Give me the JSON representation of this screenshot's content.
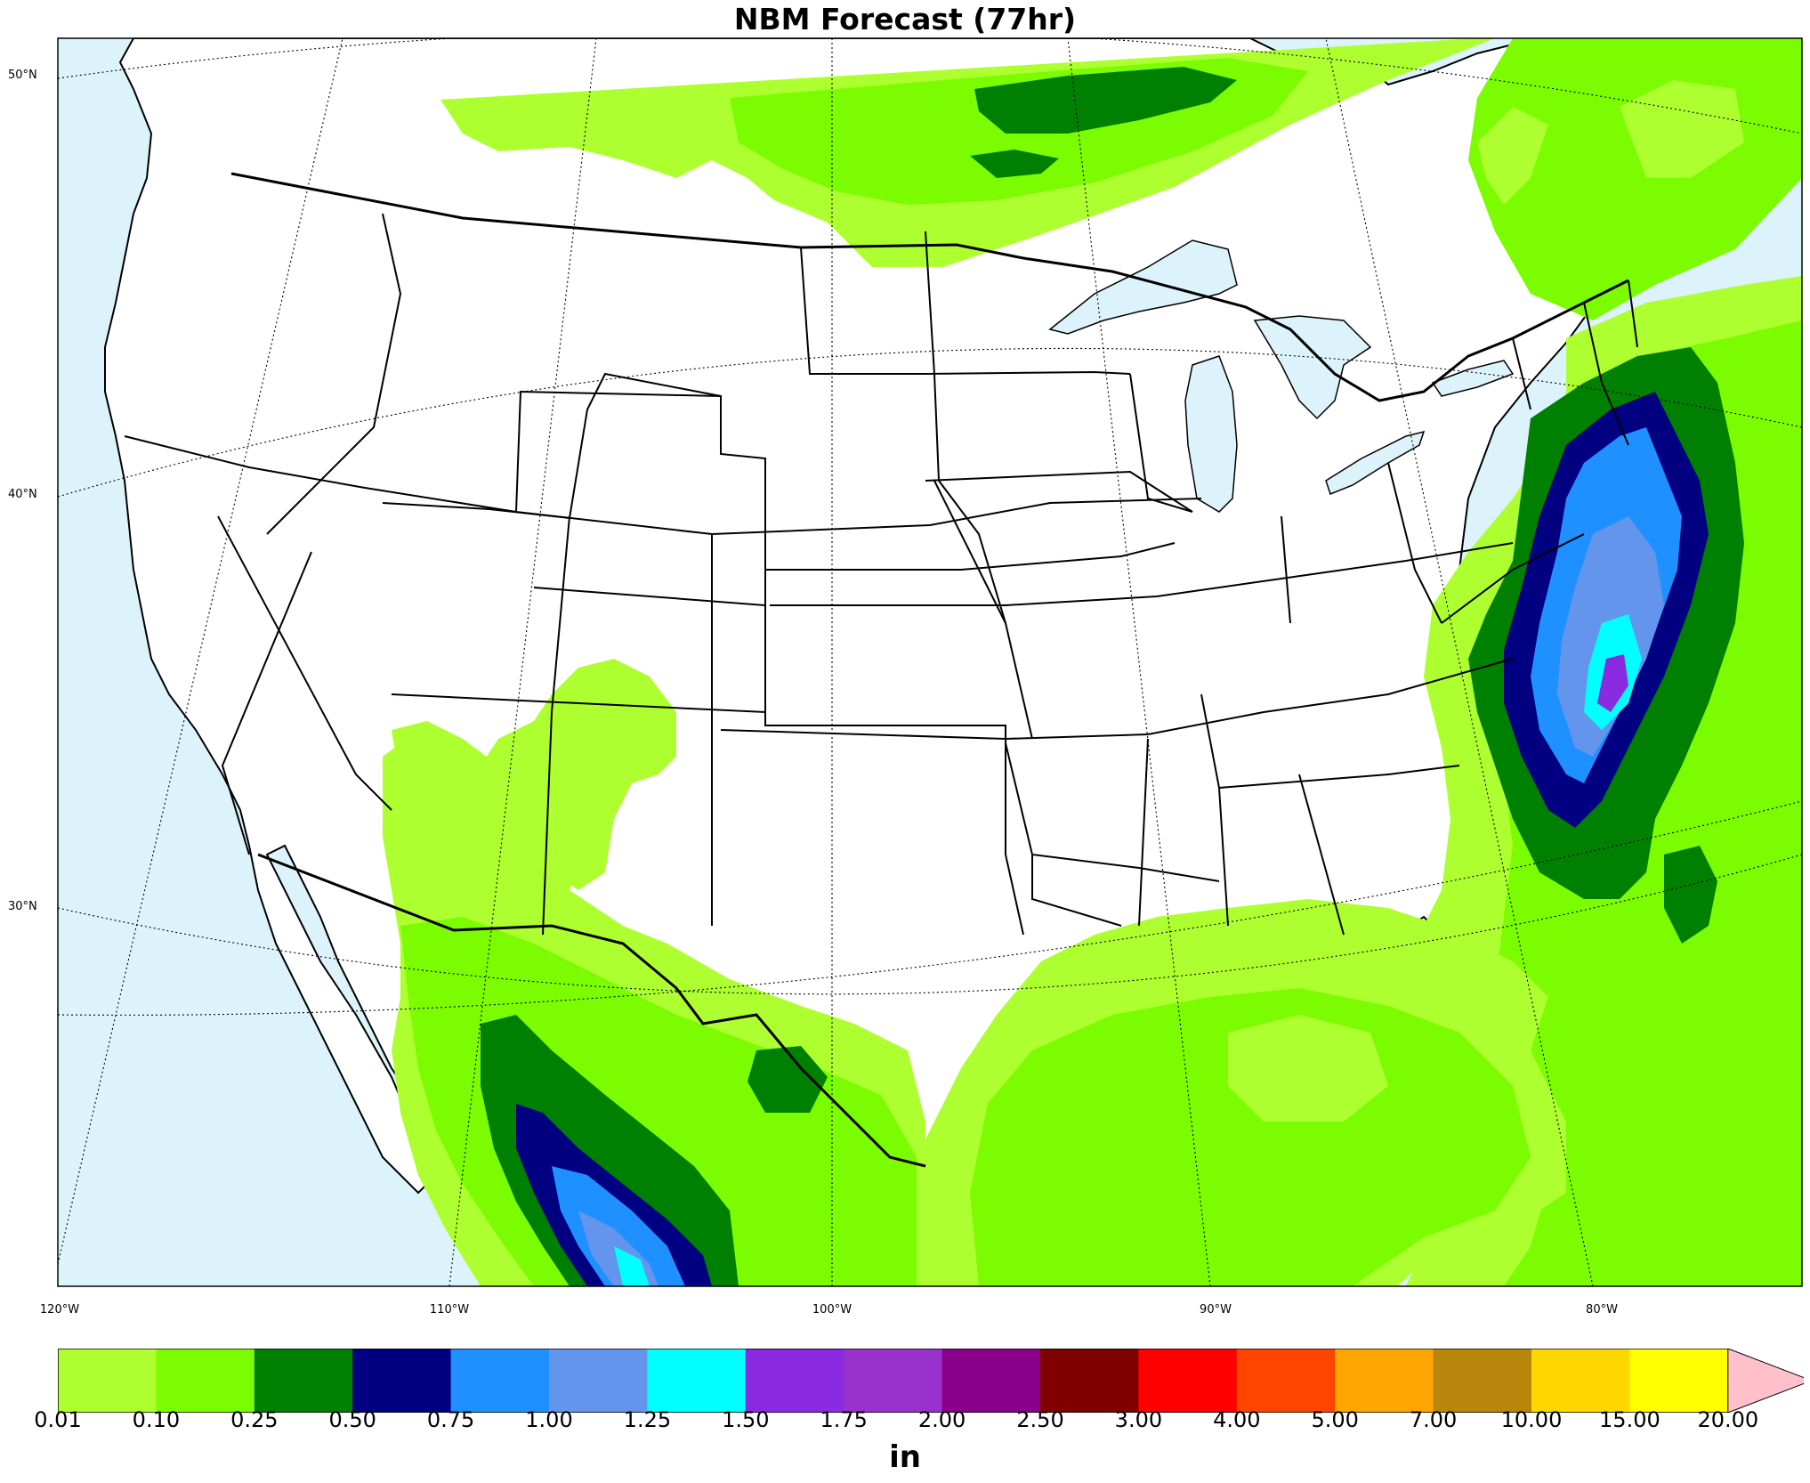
{
  "title": "NBM Forecast (77hr)",
  "units_label": "in",
  "colors": {
    "ocean": "#ddf3fb",
    "land": "#ffffff",
    "border": "#000000"
  },
  "lat_labels": [
    "50°N",
    "40°N",
    "30°N"
  ],
  "lon_labels": [
    "120°W",
    "110°W",
    "100°W",
    "90°W",
    "80°W"
  ],
  "colorbar": {
    "ticks": [
      "0.01",
      "0.10",
      "0.25",
      "0.50",
      "0.75",
      "1.00",
      "1.25",
      "1.50",
      "1.75",
      "2.00",
      "2.50",
      "3.00",
      "4.00",
      "5.00",
      "7.00",
      "10.00",
      "15.00",
      "20.00"
    ],
    "colors": [
      "#adff2f",
      "#7cfc00",
      "#008000",
      "#000080",
      "#1e90ff",
      "#6495ed",
      "#00ffff",
      "#8a2be2",
      "#9932cc",
      "#8b008b",
      "#800000",
      "#ff0000",
      "#ff4500",
      "#ffa500",
      "#b8860b",
      "#ffd700",
      "#ffff00"
    ],
    "extend_color": "#ffc0cb"
  },
  "precip_levels": [
    {
      "name": "0.01-0.10 in",
      "color": "#adff2f"
    },
    {
      "name": "0.10-0.25 in",
      "color": "#7cfc00"
    },
    {
      "name": "0.25-0.50 in",
      "color": "#008000"
    },
    {
      "name": "0.50-0.75 in",
      "color": "#000080"
    },
    {
      "name": "0.75-1.00 in",
      "color": "#1e90ff"
    },
    {
      "name": "1.00-1.25 in",
      "color": "#6495ed"
    },
    {
      "name": "1.25-1.50 in",
      "color": "#00ffff"
    },
    {
      "name": "1.50-1.75 in",
      "color": "#8a2be2"
    }
  ]
}
